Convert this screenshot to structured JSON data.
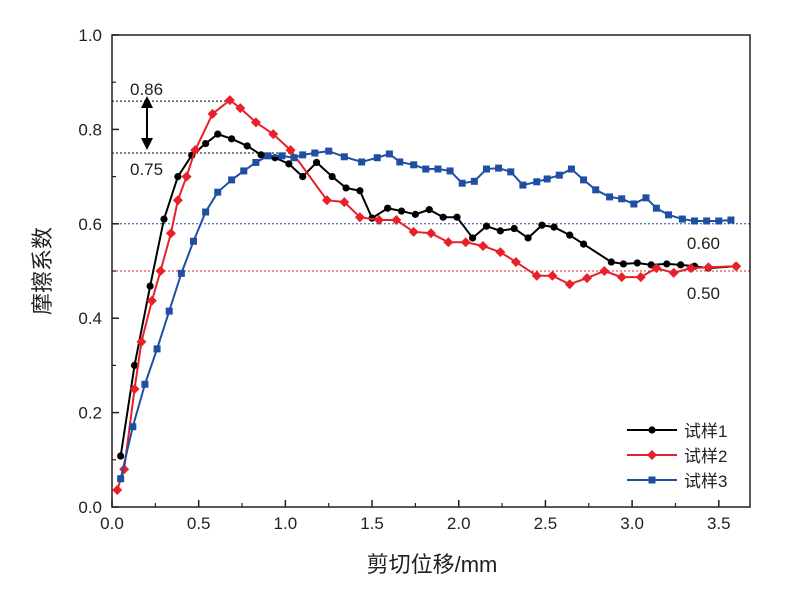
{
  "chart_data": {
    "type": "line",
    "title": "",
    "xlabel": "剪切位移/mm",
    "ylabel": "摩擦系数",
    "xlim": [
      0,
      3.68
    ],
    "ylim": [
      0,
      1.0
    ],
    "xticks": [
      "0.0",
      "0.5",
      "1.0",
      "1.5",
      "2.0",
      "2.5",
      "3.0",
      "3.5"
    ],
    "yticks": [
      "0.0",
      "0.2",
      "0.4",
      "0.6",
      "0.8",
      "1.0"
    ],
    "grid": false,
    "legend_position": "bottom-right",
    "series": [
      {
        "name": "试样1",
        "color": "#000000",
        "marker": "circle",
        "x": [
          0.05,
          0.13,
          0.22,
          0.3,
          0.38,
          0.46,
          0.54,
          0.61,
          0.69,
          0.78,
          0.86,
          0.94,
          1.02,
          1.1,
          1.18,
          1.27,
          1.35,
          1.43,
          1.5,
          1.59,
          1.67,
          1.75,
          1.83,
          1.91,
          1.99,
          2.08,
          2.16,
          2.24,
          2.32,
          2.4,
          2.48,
          2.55,
          2.64,
          2.72,
          2.88,
          2.95,
          3.03,
          3.11,
          3.2,
          3.28,
          3.36,
          3.44,
          3.6
        ],
        "y": [
          0.108,
          0.3,
          0.468,
          0.61,
          0.7,
          0.745,
          0.77,
          0.79,
          0.78,
          0.765,
          0.746,
          0.74,
          0.727,
          0.7,
          0.73,
          0.7,
          0.676,
          0.67,
          0.612,
          0.633,
          0.627,
          0.62,
          0.63,
          0.614,
          0.614,
          0.57,
          0.595,
          0.585,
          0.59,
          0.57,
          0.597,
          0.593,
          0.576,
          0.557,
          0.519,
          0.515,
          0.517,
          0.513,
          0.515,
          0.513,
          0.51,
          0.506,
          0.51
        ]
      },
      {
        "name": "试样2",
        "color": "#e8202a",
        "marker": "diamond",
        "x": [
          0.03,
          0.07,
          0.13,
          0.17,
          0.23,
          0.28,
          0.34,
          0.38,
          0.43,
          0.48,
          0.58,
          0.68,
          0.74,
          0.83,
          0.93,
          1.03,
          1.24,
          1.34,
          1.43,
          1.54,
          1.64,
          1.74,
          1.84,
          1.94,
          2.04,
          2.14,
          2.24,
          2.33,
          2.45,
          2.54,
          2.64,
          2.74,
          2.84,
          2.94,
          3.05,
          3.14,
          3.24,
          3.34,
          3.44,
          3.6
        ],
        "y": [
          0.036,
          0.08,
          0.25,
          0.35,
          0.437,
          0.5,
          0.58,
          0.65,
          0.7,
          0.756,
          0.833,
          0.862,
          0.845,
          0.815,
          0.79,
          0.756,
          0.65,
          0.646,
          0.614,
          0.608,
          0.608,
          0.583,
          0.58,
          0.561,
          0.561,
          0.553,
          0.54,
          0.519,
          0.49,
          0.49,
          0.472,
          0.485,
          0.5,
          0.487,
          0.487,
          0.506,
          0.496,
          0.506,
          0.508,
          0.51
        ]
      },
      {
        "name": "试样3",
        "color": "#1f4fa3",
        "marker": "square",
        "x": [
          0.05,
          0.12,
          0.19,
          0.26,
          0.33,
          0.4,
          0.47,
          0.54,
          0.61,
          0.69,
          0.76,
          0.83,
          0.9,
          0.98,
          1.05,
          1.1,
          1.17,
          1.25,
          1.34,
          1.44,
          1.53,
          1.6,
          1.66,
          1.74,
          1.81,
          1.88,
          1.95,
          2.02,
          2.09,
          2.16,
          2.23,
          2.3,
          2.37,
          2.45,
          2.51,
          2.58,
          2.65,
          2.72,
          2.79,
          2.87,
          2.94,
          3.01,
          3.08,
          3.14,
          3.21,
          3.29,
          3.36,
          3.43,
          3.5,
          3.57
        ],
        "y": [
          0.06,
          0.17,
          0.26,
          0.335,
          0.415,
          0.495,
          0.563,
          0.625,
          0.667,
          0.693,
          0.712,
          0.73,
          0.744,
          0.744,
          0.74,
          0.746,
          0.75,
          0.754,
          0.742,
          0.731,
          0.74,
          0.748,
          0.731,
          0.725,
          0.716,
          0.716,
          0.712,
          0.686,
          0.69,
          0.716,
          0.718,
          0.71,
          0.682,
          0.689,
          0.695,
          0.703,
          0.716,
          0.693,
          0.672,
          0.657,
          0.653,
          0.642,
          0.655,
          0.633,
          0.619,
          0.61,
          0.606,
          0.606,
          0.606,
          0.608
        ]
      }
    ],
    "annotations": [
      {
        "text": "0.86",
        "y": 0.86,
        "line_color": "#000000",
        "line_to_x": 0.7
      },
      {
        "text": "0.75",
        "y": 0.75,
        "line_color": "#000000",
        "line_to_x": 1.05
      },
      {
        "text": "0.60",
        "y": 0.6,
        "line_color": "#1f4fa3",
        "line_to_x": 3.68
      },
      {
        "text": "0.50",
        "y": 0.5,
        "line_color": "#e8202a",
        "line_to_x": 3.68
      }
    ]
  }
}
